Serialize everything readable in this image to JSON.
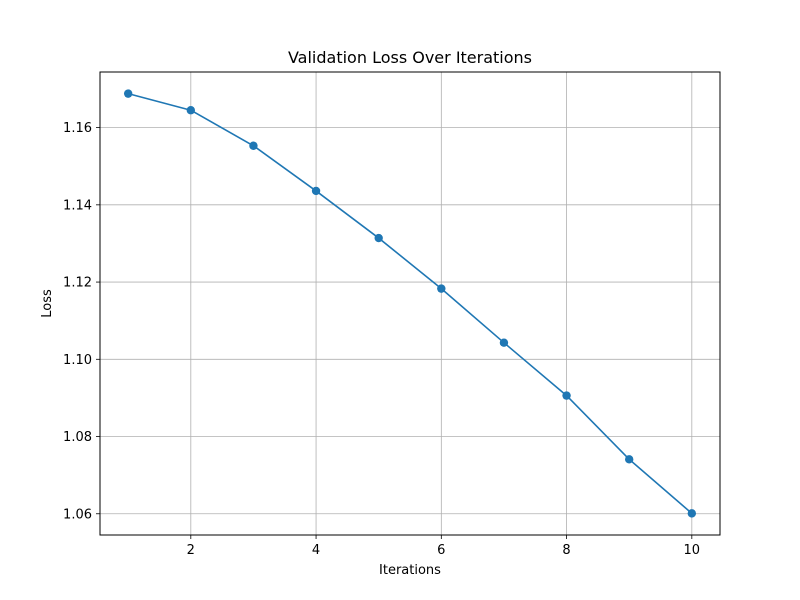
{
  "chart_data": {
    "type": "line",
    "title": "Validation Loss Over Iterations",
    "xlabel": "Iterations",
    "ylabel": "Loss",
    "xlim": [
      0.55,
      10.45
    ],
    "ylim": [
      1.0545,
      1.1744
    ],
    "x_ticks": [
      2,
      4,
      6,
      8,
      10
    ],
    "y_ticks": [
      1.06,
      1.08,
      1.1,
      1.12,
      1.14,
      1.16
    ],
    "x_tick_labels": [
      "2",
      "4",
      "6",
      "8",
      "10"
    ],
    "y_tick_labels": [
      "1.06",
      "1.08",
      "1.10",
      "1.12",
      "1.14",
      "1.16"
    ],
    "grid": true,
    "series": [
      {
        "color": "#1f77b4",
        "marker": "circle",
        "x": [
          1,
          2,
          3,
          4,
          5,
          6,
          7,
          8,
          9,
          10
        ],
        "values": [
          1.1688,
          1.1645,
          1.1553,
          1.1436,
          1.1314,
          1.1183,
          1.1043,
          1.0906,
          1.0741,
          1.0601
        ]
      }
    ]
  }
}
